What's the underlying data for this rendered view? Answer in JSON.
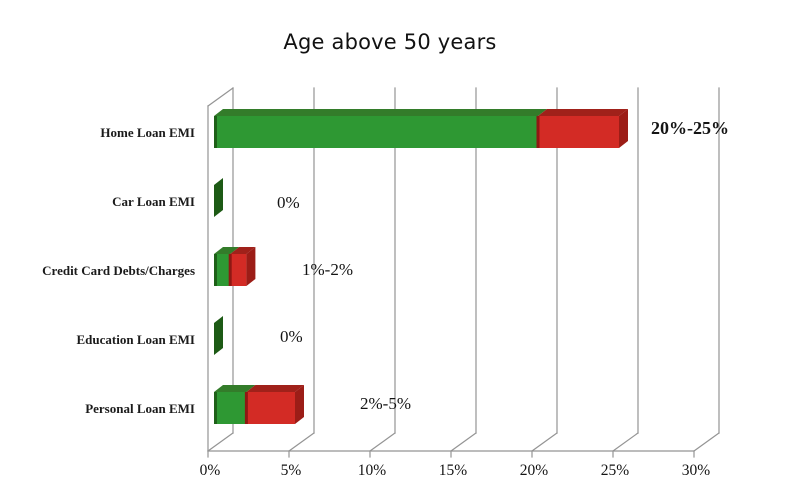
{
  "chart_data": {
    "type": "bar",
    "orientation": "horizontal",
    "style": "3d-stacked",
    "title": "Age above 50 years",
    "categories": [
      "Home Loan EMI",
      "Car Loan EMI",
      "Credit Card Debts/Charges",
      "Education Loan EMI",
      "Personal Loan EMI"
    ],
    "series": [
      {
        "name": "lower bound (green)",
        "color": "#2e9833",
        "values": [
          20,
          0,
          1,
          0,
          2
        ]
      },
      {
        "name": "upper bound extension (red)",
        "color": "#d32b25",
        "values": [
          5,
          0,
          1,
          0,
          3
        ]
      }
    ],
    "ranges": [
      {
        "lo": 20,
        "hi": 25
      },
      {
        "lo": 0,
        "hi": 0
      },
      {
        "lo": 1,
        "hi": 2
      },
      {
        "lo": 0,
        "hi": 0
      },
      {
        "lo": 2,
        "hi": 5
      }
    ],
    "annotations": [
      "20%-25%",
      "0%",
      "1%-2%",
      "0%",
      "2%-5%"
    ],
    "x_ticks": [
      "0%",
      "5%",
      "10%",
      "15%",
      "20%",
      "25%",
      "30%"
    ],
    "xlim": [
      0,
      30
    ],
    "xlabel": "",
    "ylabel": "",
    "grid": true,
    "legend": "none",
    "colors": {
      "bar_green": "#2e9833",
      "bar_green_top": "#337c2a",
      "bar_green_edge": "#1e6018",
      "bar_green_zero": "#1d5a15",
      "bar_red": "#d32b25",
      "bar_red_top": "#a0211a",
      "bar_red_cap": "#9c1d17",
      "bar_red_seam": "#8f1813",
      "grid_line": "#949494",
      "text": "#141414"
    }
  }
}
